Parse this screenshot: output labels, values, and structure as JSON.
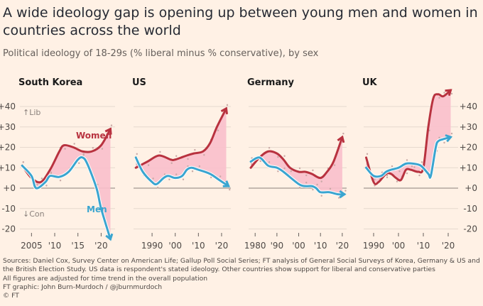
{
  "title": "A wide ideology gap is opening up between young men and women in countries across the world",
  "subtitle": "Political ideology of 18-29s (% liberal minus % conservative), by sex",
  "colors": {
    "background": "#fff1e5",
    "women": "#b8323f",
    "men": "#3aa5d0",
    "gap_fill": "#f9bfcb",
    "grid": "#e6d9ce",
    "zero": "#8a817c"
  },
  "footer": {
    "sources": "Sources: Daniel Cox, Survey Center on American Life; Gallup Poll Social Series; FT analysis of General Social Surveys of Korea, Germany & US and the British Election Study. US data is respondent's stated ideology. Other countries show support for liberal and conservative parties",
    "note": "All figures are adjusted for time trend in the overall population",
    "credit": "FT graphic: John Burn-Murdoch / @jburnmurdoch",
    "copyright": "© FT"
  },
  "chart_data": [
    {
      "type": "line",
      "title": "South Korea",
      "ylim": [
        -25,
        45
      ],
      "yticks": [
        "+40",
        "+30",
        "+20",
        "+10",
        "+0",
        "-10",
        "-20"
      ],
      "xticks": [
        {
          "v": 2005,
          "l": "2005"
        },
        {
          "v": 2010,
          "l": "'10"
        },
        {
          "v": 2015,
          "l": "'15"
        },
        {
          "v": 2020,
          "l": "'20"
        }
      ],
      "xlim": [
        2002.5,
        2023
      ],
      "annotations": {
        "lib": "↑Lib",
        "con": "↓Con"
      },
      "series": [
        {
          "name": "Women",
          "x": [
            2003,
            2005,
            2007,
            2009,
            2011,
            2012,
            2014,
            2016,
            2018,
            2020,
            2022
          ],
          "y": [
            11,
            5,
            3,
            9,
            18,
            21,
            20,
            18,
            18,
            21,
            29
          ]
        },
        {
          "name": "Men",
          "x": [
            2003,
            2005,
            2006,
            2008,
            2009,
            2011,
            2013,
            2015,
            2016,
            2017,
            2019,
            2020,
            2022
          ],
          "y": [
            11,
            6,
            0,
            3,
            6,
            5.5,
            8,
            14,
            15,
            12,
            0,
            -10,
            -25
          ]
        }
      ]
    },
    {
      "type": "line",
      "title": "US",
      "ylim": [
        -25,
        45
      ],
      "xticks": [
        {
          "v": 1990,
          "l": "1990"
        },
        {
          "v": 2000,
          "l": "'00"
        },
        {
          "v": 2010,
          "l": "'10"
        },
        {
          "v": 2020,
          "l": "'20"
        }
      ],
      "xlim": [
        1982,
        2024
      ],
      "series": [
        {
          "name": "Women",
          "x": [
            1983,
            1988,
            1993,
            1998,
            2000,
            2005,
            2008,
            2012,
            2015,
            2018,
            2022
          ],
          "y": [
            10,
            13,
            16,
            14,
            14,
            16,
            17,
            18,
            22,
            30,
            39
          ]
        },
        {
          "name": "Men",
          "x": [
            1983,
            1986,
            1990,
            1992,
            1995,
            1997,
            2000,
            2003,
            2005,
            2007,
            2010,
            2015,
            2019,
            2023
          ],
          "y": [
            15,
            8,
            3,
            2,
            5,
            6,
            5,
            6,
            9,
            10,
            9,
            7,
            4,
            1
          ]
        }
      ]
    },
    {
      "type": "line",
      "title": "Germany",
      "ylim": [
        -25,
        45
      ],
      "xticks": [
        {
          "v": 1980,
          "l": "1980"
        },
        {
          "v": 1990,
          "l": "'90"
        },
        {
          "v": 2000,
          "l": "'00"
        },
        {
          "v": 2010,
          "l": "'10"
        },
        {
          "v": 2020,
          "l": "'20"
        }
      ],
      "xlim": [
        1977,
        2022
      ],
      "series": [
        {
          "name": "Women",
          "x": [
            1978,
            1982,
            1986,
            1990,
            1993,
            1996,
            2000,
            2003,
            2006,
            2010,
            2013,
            2016,
            2020
          ],
          "y": [
            10,
            15,
            18,
            17,
            14,
            10,
            8,
            8,
            7,
            5,
            8,
            13,
            25
          ]
        },
        {
          "name": "Men",
          "x": [
            1978,
            1982,
            1986,
            1990,
            1993,
            2000,
            2003,
            2006,
            2008,
            2010,
            2014,
            2018,
            2021
          ],
          "y": [
            13,
            15,
            11,
            10,
            8,
            2,
            1,
            1,
            0,
            -2,
            -2,
            -3,
            -3
          ]
        }
      ]
    },
    {
      "type": "line",
      "title": "UK",
      "ylim": [
        -25,
        45
      ],
      "yticks": [
        "+40",
        "+30",
        "+20",
        "+10",
        "+0",
        "-10",
        "-20"
      ],
      "xticks": [
        {
          "v": 1990,
          "l": "1990"
        },
        {
          "v": 2000,
          "l": "'00"
        },
        {
          "v": 2010,
          "l": "'10"
        },
        {
          "v": 2020,
          "l": "'20"
        }
      ],
      "xlim": [
        1986,
        2024
      ],
      "series": [
        {
          "name": "Women",
          "x": [
            1987,
            1990,
            1992,
            1995,
            1997,
            1999,
            2001,
            2003,
            2005,
            2008,
            2010,
            2012,
            2014,
            2016,
            2018,
            2021
          ],
          "y": [
            15,
            3,
            3,
            7,
            7,
            5,
            4,
            9,
            9,
            8,
            10,
            30,
            44,
            46,
            45,
            48
          ]
        },
        {
          "name": "Men",
          "x": [
            1987,
            1990,
            1993,
            1995,
            1997,
            2000,
            2003,
            2006,
            2009,
            2012,
            2013,
            2015,
            2016,
            2018,
            2021
          ],
          "y": [
            10,
            6,
            6,
            8,
            9,
            10,
            12,
            12,
            11,
            7,
            6,
            20,
            23,
            24,
            25
          ]
        }
      ]
    }
  ]
}
